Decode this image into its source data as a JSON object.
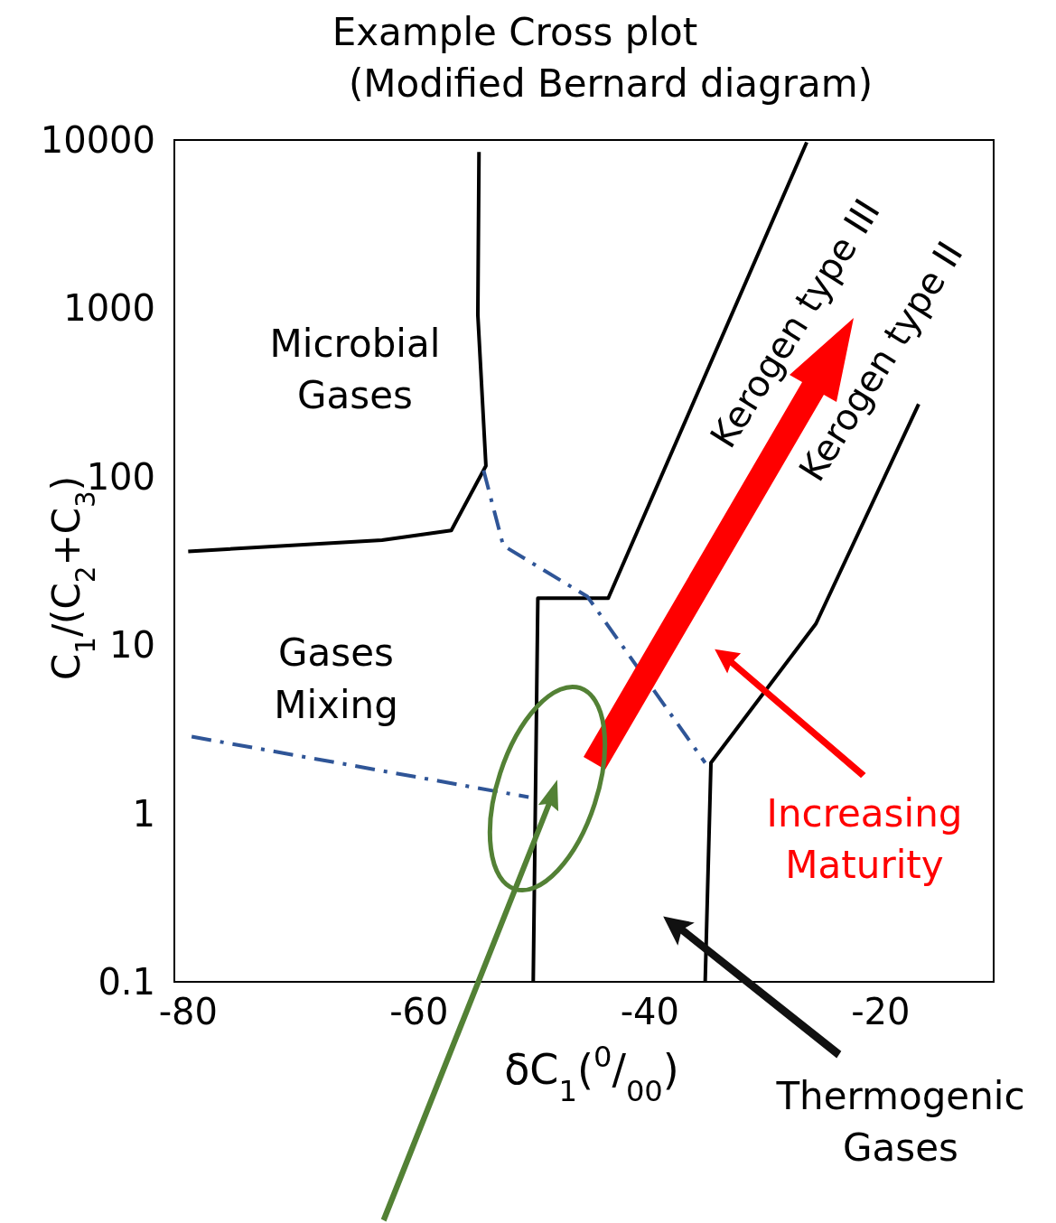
{
  "chart_data": {
    "type": "line",
    "title": "Example Cross plot",
    "subtitle": "(Modified Bernard diagram)",
    "xlabel": "δC$_{1}$($^{0}$/$_{00}$)",
    "ylabel": "C$_{1}$/(C$_{2}$+C$_{3}$)",
    "xlim": [
      -81.2,
      -10.2
    ],
    "xticks": [
      -80,
      -60,
      -40,
      -20
    ],
    "ylim": [
      0.1,
      10000
    ],
    "yticks": [
      0.1,
      1,
      10,
      100,
      1000,
      10000
    ],
    "log": true,
    "grid": false,
    "series": [
      {
        "color": "#000000",
        "x": [
          -54.8,
          -54.9,
          -54.2,
          -57.2,
          -63.2,
          -80
        ],
        "values": [
          8500,
          915,
          116,
          48,
          42,
          36
        ]
      },
      {
        "color": "#000000",
        "x": [
          -50.1,
          -49.7,
          -43.6,
          -26.4
        ],
        "values": [
          0.1,
          19,
          19,
          9700
        ]
      },
      {
        "color": "#000000",
        "x": [
          -35.2,
          -34.7,
          -25.6,
          -16.7
        ],
        "values": [
          0.1,
          2,
          13.4,
          270
        ]
      },
      {
        "color": "#2f5597",
        "line_style": "dashed",
        "x": [
          -54.4,
          -52.7,
          -45.4,
          -35.2
        ],
        "values": [
          109,
          39,
          19.4,
          2
        ]
      },
      {
        "color": "#2f5597",
        "line_style": "dashed",
        "x": [
          -79.7,
          -50.5
        ],
        "values": [
          2.86,
          1.25
        ]
      }
    ],
    "annotations": [
      "Microbial Gases",
      "Gases Mixing",
      "Kerogen type III",
      "Kerogen type II",
      "Increasing Maturity",
      "Thermogenic Gases"
    ]
  }
}
